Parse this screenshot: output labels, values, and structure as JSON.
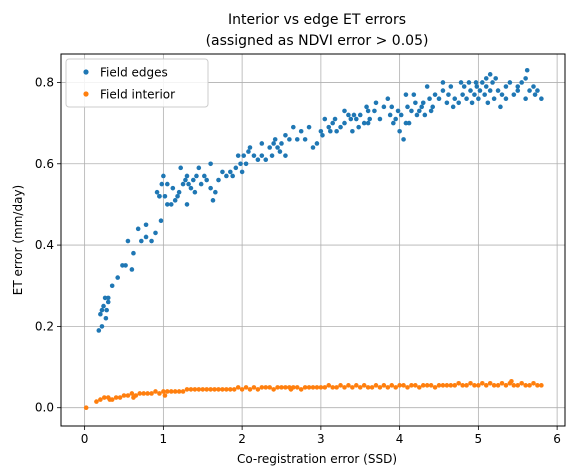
{
  "chart_data": {
    "type": "scatter",
    "title": "Interior vs edge ET errors",
    "subtitle": "(assigned as NDVI error > 0.05)",
    "xlabel": "Co-registration error (SSD)",
    "ylabel": "ET error (mm/day)",
    "xlim": [
      -0.3,
      6.1
    ],
    "ylim": [
      -0.045,
      0.87
    ],
    "xticks": [
      0,
      1,
      2,
      3,
      4,
      5,
      6
    ],
    "yticks": [
      0.0,
      0.2,
      0.4,
      0.6,
      0.8
    ],
    "grid": true,
    "legend_position": "top-left",
    "series": [
      {
        "name": "Field edges",
        "color": "#1f77b4",
        "points": [
          [
            0.18,
            0.19
          ],
          [
            0.2,
            0.23
          ],
          [
            0.22,
            0.2
          ],
          [
            0.24,
            0.25
          ],
          [
            0.26,
            0.27
          ],
          [
            0.28,
            0.24
          ],
          [
            0.3,
            0.27
          ],
          [
            0.27,
            0.22
          ],
          [
            0.35,
            0.3
          ],
          [
            0.42,
            0.32
          ],
          [
            0.48,
            0.35
          ],
          [
            0.52,
            0.35
          ],
          [
            0.55,
            0.41
          ],
          [
            0.6,
            0.34
          ],
          [
            0.62,
            0.38
          ],
          [
            0.68,
            0.44
          ],
          [
            0.72,
            0.41
          ],
          [
            0.78,
            0.42
          ],
          [
            0.85,
            0.41
          ],
          [
            0.9,
            0.43
          ],
          [
            0.92,
            0.53
          ],
          [
            0.95,
            0.52
          ],
          [
            0.97,
            0.46
          ],
          [
            0.98,
            0.55
          ],
          [
            1.0,
            0.57
          ],
          [
            1.02,
            0.52
          ],
          [
            1.05,
            0.55
          ],
          [
            1.1,
            0.5
          ],
          [
            1.12,
            0.54
          ],
          [
            1.15,
            0.51
          ],
          [
            1.18,
            0.52
          ],
          [
            1.2,
            0.53
          ],
          [
            1.22,
            0.59
          ],
          [
            1.25,
            0.55
          ],
          [
            1.28,
            0.56
          ],
          [
            1.3,
            0.57
          ],
          [
            1.32,
            0.55
          ],
          [
            1.35,
            0.54
          ],
          [
            1.38,
            0.56
          ],
          [
            1.4,
            0.53
          ],
          [
            1.42,
            0.57
          ],
          [
            1.45,
            0.59
          ],
          [
            1.48,
            0.55
          ],
          [
            1.52,
            0.57
          ],
          [
            1.55,
            0.56
          ],
          [
            1.6,
            0.54
          ],
          [
            1.63,
            0.51
          ],
          [
            1.66,
            0.53
          ],
          [
            1.7,
            0.56
          ],
          [
            1.75,
            0.58
          ],
          [
            1.8,
            0.57
          ],
          [
            1.85,
            0.58
          ],
          [
            1.88,
            0.57
          ],
          [
            1.92,
            0.59
          ],
          [
            1.95,
            0.62
          ],
          [
            1.98,
            0.6
          ],
          [
            2.0,
            0.58
          ],
          [
            2.02,
            0.62
          ],
          [
            2.05,
            0.6
          ],
          [
            2.08,
            0.63
          ],
          [
            2.1,
            0.64
          ],
          [
            2.15,
            0.62
          ],
          [
            2.2,
            0.61
          ],
          [
            2.25,
            0.62
          ],
          [
            2.3,
            0.61
          ],
          [
            2.35,
            0.64
          ],
          [
            2.38,
            0.62
          ],
          [
            2.4,
            0.65
          ],
          [
            2.42,
            0.66
          ],
          [
            2.45,
            0.64
          ],
          [
            2.48,
            0.63
          ],
          [
            2.5,
            0.65
          ],
          [
            2.55,
            0.67
          ],
          [
            2.6,
            0.66
          ],
          [
            2.65,
            0.69
          ],
          [
            2.7,
            0.66
          ],
          [
            2.75,
            0.68
          ],
          [
            2.8,
            0.66
          ],
          [
            2.85,
            0.69
          ],
          [
            2.9,
            0.64
          ],
          [
            2.95,
            0.65
          ],
          [
            3.0,
            0.68
          ],
          [
            3.02,
            0.67
          ],
          [
            3.05,
            0.71
          ],
          [
            3.1,
            0.69
          ],
          [
            3.12,
            0.68
          ],
          [
            3.15,
            0.7
          ],
          [
            3.18,
            0.71
          ],
          [
            3.2,
            0.68
          ],
          [
            3.25,
            0.69
          ],
          [
            3.3,
            0.7
          ],
          [
            3.35,
            0.72
          ],
          [
            3.38,
            0.71
          ],
          [
            3.4,
            0.68
          ],
          [
            3.42,
            0.72
          ],
          [
            3.45,
            0.71
          ],
          [
            3.48,
            0.69
          ],
          [
            3.5,
            0.72
          ],
          [
            3.55,
            0.7
          ],
          [
            3.58,
            0.74
          ],
          [
            3.6,
            0.73
          ],
          [
            3.62,
            0.71
          ],
          [
            3.68,
            0.73
          ],
          [
            3.7,
            0.75
          ],
          [
            3.75,
            0.71
          ],
          [
            3.8,
            0.74
          ],
          [
            3.85,
            0.76
          ],
          [
            3.88,
            0.72
          ],
          [
            3.9,
            0.74
          ],
          [
            3.92,
            0.7
          ],
          [
            3.95,
            0.71
          ],
          [
            3.98,
            0.73
          ],
          [
            4.0,
            0.68
          ],
          [
            4.02,
            0.72
          ],
          [
            4.05,
            0.66
          ],
          [
            4.08,
            0.77
          ],
          [
            4.1,
            0.74
          ],
          [
            4.12,
            0.7
          ],
          [
            4.15,
            0.73
          ],
          [
            4.18,
            0.77
          ],
          [
            4.2,
            0.75
          ],
          [
            4.22,
            0.72
          ],
          [
            4.25,
            0.73
          ],
          [
            4.28,
            0.74
          ],
          [
            4.3,
            0.75
          ],
          [
            4.32,
            0.72
          ],
          [
            4.35,
            0.79
          ],
          [
            4.38,
            0.76
          ],
          [
            4.4,
            0.73
          ],
          [
            4.45,
            0.77
          ],
          [
            4.5,
            0.76
          ],
          [
            4.55,
            0.78
          ],
          [
            4.6,
            0.75
          ],
          [
            4.62,
            0.77
          ],
          [
            4.65,
            0.79
          ],
          [
            4.68,
            0.74
          ],
          [
            4.7,
            0.76
          ],
          [
            4.75,
            0.75
          ],
          [
            4.78,
            0.8
          ],
          [
            4.8,
            0.77
          ],
          [
            4.82,
            0.79
          ],
          [
            4.85,
            0.76
          ],
          [
            4.88,
            0.8
          ],
          [
            4.9,
            0.78
          ],
          [
            4.92,
            0.75
          ],
          [
            4.95,
            0.77
          ],
          [
            4.98,
            0.79
          ],
          [
            5.0,
            0.76
          ],
          [
            5.02,
            0.78
          ],
          [
            5.05,
            0.8
          ],
          [
            5.08,
            0.77
          ],
          [
            5.1,
            0.79
          ],
          [
            5.12,
            0.75
          ],
          [
            5.15,
            0.78
          ],
          [
            5.18,
            0.8
          ],
          [
            5.2,
            0.76
          ],
          [
            5.22,
            0.81
          ],
          [
            5.25,
            0.78
          ],
          [
            5.28,
            0.74
          ],
          [
            5.3,
            0.77
          ],
          [
            5.35,
            0.79
          ],
          [
            5.4,
            0.8
          ],
          [
            5.45,
            0.77
          ],
          [
            5.5,
            0.79
          ],
          [
            5.55,
            0.8
          ],
          [
            5.6,
            0.76
          ],
          [
            5.62,
            0.83
          ],
          [
            5.65,
            0.78
          ],
          [
            5.7,
            0.79
          ],
          [
            5.72,
            0.77
          ],
          [
            5.75,
            0.78
          ],
          [
            5.8,
            0.76
          ],
          [
            5.6,
            0.81
          ],
          [
            5.1,
            0.81
          ],
          [
            5.15,
            0.82
          ],
          [
            4.97,
            0.8
          ],
          [
            4.55,
            0.8
          ],
          [
            4.42,
            0.74
          ],
          [
            4.08,
            0.7
          ],
          [
            3.6,
            0.7
          ],
          [
            3.3,
            0.73
          ],
          [
            2.55,
            0.62
          ],
          [
            2.25,
            0.65
          ],
          [
            1.6,
            0.6
          ],
          [
            1.3,
            0.5
          ],
          [
            1.05,
            0.5
          ],
          [
            0.95,
            0.52
          ],
          [
            0.78,
            0.45
          ],
          [
            0.3,
            0.26
          ],
          [
            0.22,
            0.24
          ],
          [
            5.35,
            0.76
          ],
          [
            5.5,
            0.78
          ]
        ]
      },
      {
        "name": "Field interior",
        "color": "#ff7f0e",
        "points": [
          [
            0.02,
            0.0
          ],
          [
            0.15,
            0.015
          ],
          [
            0.2,
            0.02
          ],
          [
            0.25,
            0.025
          ],
          [
            0.3,
            0.025
          ],
          [
            0.35,
            0.02
          ],
          [
            0.4,
            0.025
          ],
          [
            0.45,
            0.025
          ],
          [
            0.5,
            0.03
          ],
          [
            0.55,
            0.03
          ],
          [
            0.6,
            0.035
          ],
          [
            0.65,
            0.03
          ],
          [
            0.7,
            0.035
          ],
          [
            0.75,
            0.035
          ],
          [
            0.8,
            0.035
          ],
          [
            0.85,
            0.035
          ],
          [
            0.9,
            0.04
          ],
          [
            0.95,
            0.035
          ],
          [
            1.0,
            0.04
          ],
          [
            1.05,
            0.04
          ],
          [
            1.1,
            0.04
          ],
          [
            1.15,
            0.04
          ],
          [
            1.2,
            0.04
          ],
          [
            1.25,
            0.04
          ],
          [
            1.3,
            0.045
          ],
          [
            1.35,
            0.045
          ],
          [
            1.4,
            0.045
          ],
          [
            1.45,
            0.045
          ],
          [
            1.5,
            0.045
          ],
          [
            1.55,
            0.045
          ],
          [
            1.6,
            0.045
          ],
          [
            1.65,
            0.045
          ],
          [
            1.7,
            0.045
          ],
          [
            1.75,
            0.045
          ],
          [
            1.8,
            0.045
          ],
          [
            1.85,
            0.045
          ],
          [
            1.9,
            0.045
          ],
          [
            1.95,
            0.05
          ],
          [
            2.0,
            0.045
          ],
          [
            2.05,
            0.05
          ],
          [
            2.1,
            0.045
          ],
          [
            2.15,
            0.05
          ],
          [
            2.2,
            0.045
          ],
          [
            2.25,
            0.05
          ],
          [
            2.3,
            0.05
          ],
          [
            2.35,
            0.05
          ],
          [
            2.4,
            0.045
          ],
          [
            2.45,
            0.05
          ],
          [
            2.5,
            0.05
          ],
          [
            2.55,
            0.05
          ],
          [
            2.6,
            0.05
          ],
          [
            2.65,
            0.05
          ],
          [
            2.7,
            0.05
          ],
          [
            2.75,
            0.045
          ],
          [
            2.8,
            0.05
          ],
          [
            2.85,
            0.05
          ],
          [
            2.9,
            0.05
          ],
          [
            2.95,
            0.05
          ],
          [
            3.0,
            0.05
          ],
          [
            3.05,
            0.05
          ],
          [
            3.1,
            0.055
          ],
          [
            3.15,
            0.05
          ],
          [
            3.2,
            0.05
          ],
          [
            3.25,
            0.055
          ],
          [
            3.3,
            0.05
          ],
          [
            3.35,
            0.055
          ],
          [
            3.4,
            0.05
          ],
          [
            3.45,
            0.055
          ],
          [
            3.5,
            0.05
          ],
          [
            3.55,
            0.055
          ],
          [
            3.6,
            0.05
          ],
          [
            3.65,
            0.05
          ],
          [
            3.7,
            0.055
          ],
          [
            3.75,
            0.05
          ],
          [
            3.8,
            0.055
          ],
          [
            3.85,
            0.05
          ],
          [
            3.9,
            0.055
          ],
          [
            3.95,
            0.05
          ],
          [
            4.0,
            0.055
          ],
          [
            4.05,
            0.055
          ],
          [
            4.1,
            0.05
          ],
          [
            4.15,
            0.055
          ],
          [
            4.2,
            0.055
          ],
          [
            4.25,
            0.05
          ],
          [
            4.3,
            0.055
          ],
          [
            4.35,
            0.055
          ],
          [
            4.4,
            0.055
          ],
          [
            4.45,
            0.05
          ],
          [
            4.5,
            0.055
          ],
          [
            4.55,
            0.055
          ],
          [
            4.6,
            0.055
          ],
          [
            4.65,
            0.055
          ],
          [
            4.7,
            0.055
          ],
          [
            4.75,
            0.06
          ],
          [
            4.8,
            0.055
          ],
          [
            4.85,
            0.055
          ],
          [
            4.9,
            0.06
          ],
          [
            4.95,
            0.055
          ],
          [
            5.0,
            0.055
          ],
          [
            5.05,
            0.06
          ],
          [
            5.1,
            0.055
          ],
          [
            5.15,
            0.06
          ],
          [
            5.2,
            0.055
          ],
          [
            5.25,
            0.055
          ],
          [
            5.3,
            0.06
          ],
          [
            5.35,
            0.055
          ],
          [
            5.4,
            0.06
          ],
          [
            5.45,
            0.055
          ],
          [
            5.5,
            0.055
          ],
          [
            5.55,
            0.06
          ],
          [
            5.6,
            0.055
          ],
          [
            5.65,
            0.055
          ],
          [
            5.7,
            0.06
          ],
          [
            5.75,
            0.055
          ],
          [
            5.8,
            0.055
          ],
          [
            5.42,
            0.065
          ],
          [
            1.02,
            0.03
          ],
          [
            0.32,
            0.02
          ],
          [
            0.62,
            0.025
          ],
          [
            2.62,
            0.045
          ]
        ]
      }
    ]
  }
}
